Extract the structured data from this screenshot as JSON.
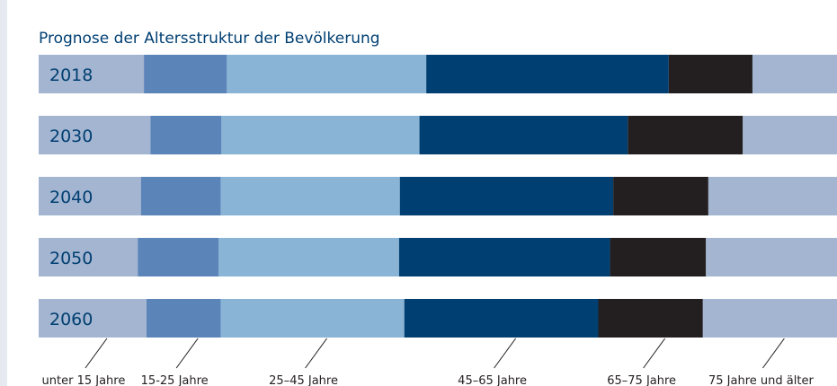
{
  "chart_data": {
    "type": "stacked-bar-horizontal",
    "title": "Prognose der Altersstruktur der Bevölkerung",
    "categories": [
      "2018",
      "2030",
      "2040",
      "2050",
      "2060"
    ],
    "series": [
      {
        "name": "unter 15 Jahre",
        "color": "#a3b5d0",
        "values": [
          13.2,
          14.0,
          12.8,
          12.4,
          13.5
        ]
      },
      {
        "name": "15-25 Jahre",
        "color": "#5b84b8",
        "values": [
          10.4,
          8.9,
          10.0,
          10.1,
          9.3
        ]
      },
      {
        "name": "25–45 Jahre",
        "color": "#89b4d6",
        "values": [
          25.0,
          24.8,
          22.4,
          22.6,
          23.0
        ]
      },
      {
        "name": "45–65 Jahre",
        "color": "#003f72",
        "values": [
          30.4,
          26.1,
          26.7,
          26.4,
          24.3
        ]
      },
      {
        "name": "65–75 Jahre",
        "color": "#231f20",
        "values": [
          10.5,
          14.4,
          11.9,
          12.0,
          13.1
        ]
      },
      {
        "name": "75 Jahre und älter",
        "color": "#a3b5d0",
        "values": [
          10.6,
          11.8,
          16.1,
          16.4,
          16.8
        ]
      }
    ]
  }
}
